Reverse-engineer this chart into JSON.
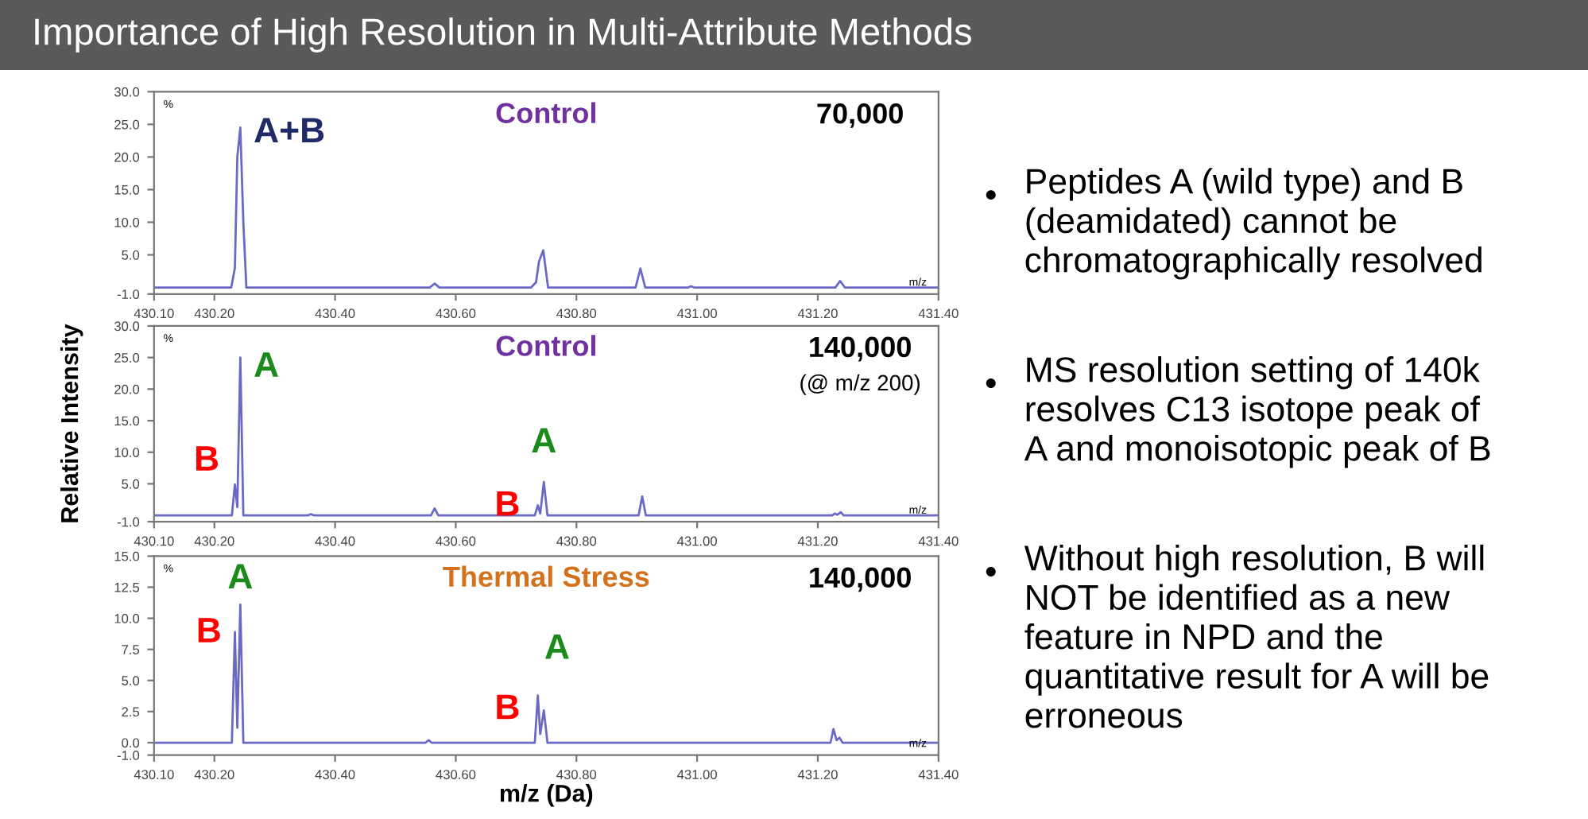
{
  "chart_data": [
    {
      "type": "line",
      "title": "Control",
      "annotations": [
        "%",
        "m/z",
        "70,000",
        {
          "text": "A+B",
          "x": 430.243,
          "y": 24.5
        }
      ],
      "x": [
        430.1,
        430.228,
        430.234,
        430.238,
        430.243,
        430.248,
        430.253,
        430.557,
        430.565,
        430.573,
        430.725,
        430.733,
        430.738,
        430.745,
        430.753,
        430.898,
        430.906,
        430.914,
        430.985,
        430.99,
        430.995,
        431.229,
        431.237,
        431.245,
        431.4
      ],
      "series": [
        {
          "color": "#6a6ac4",
          "values": [
            0,
            0,
            3.0,
            20.0,
            24.5,
            10.0,
            0,
            0,
            0.6,
            0,
            0,
            0.8,
            4.0,
            5.7,
            0,
            0,
            2.9,
            0,
            0,
            0.2,
            0,
            0,
            1.0,
            0,
            0
          ]
        }
      ],
      "xlim": [
        430.1,
        431.4
      ],
      "xticks": [
        {
          "value": 430.1,
          "label": "430.10"
        },
        {
          "value": 430.2,
          "label": "430.20"
        },
        {
          "value": 430.4,
          "label": "430.40"
        },
        {
          "value": 430.6,
          "label": "430.60"
        },
        {
          "value": 430.8,
          "label": "430.80"
        },
        {
          "value": 431.0,
          "label": "431.00"
        },
        {
          "value": 431.2,
          "label": "431.20"
        },
        {
          "value": 431.4,
          "label": "431.40"
        }
      ],
      "ylim": [
        -1,
        30
      ],
      "yticks": [
        {
          "value": -1,
          "label": "-1.0"
        },
        {
          "value": 5,
          "label": "5.0"
        },
        {
          "value": 10,
          "label": "10.0"
        },
        {
          "value": 15,
          "label": "15.0"
        },
        {
          "value": 20,
          "label": "20.0"
        },
        {
          "value": 25,
          "label": "25.0"
        },
        {
          "value": 30,
          "label": "30.0"
        }
      ]
    },
    {
      "type": "line",
      "title": "Control",
      "ylabel": "Relative Intensity",
      "annotations": [
        "%",
        "m/z",
        "140,000",
        "(@ m/z 200)",
        {
          "text": "B",
          "x": 430.234,
          "y": 4.9
        },
        {
          "text": "A",
          "x": 430.243,
          "y": 25.0
        },
        {
          "text": "B",
          "x": 430.736,
          "y": 1.6
        },
        {
          "text": "A",
          "x": 430.746,
          "y": 5.3
        }
      ],
      "x": [
        430.1,
        430.229,
        430.234,
        430.238,
        430.243,
        430.248,
        430.355,
        430.36,
        430.365,
        430.559,
        430.565,
        430.571,
        430.731,
        430.736,
        430.74,
        430.746,
        430.752,
        430.903,
        430.909,
        430.915,
        431.224,
        431.228,
        431.232,
        431.238,
        431.243,
        431.4
      ],
      "series": [
        {
          "color": "#6a6ac4",
          "values": [
            0,
            0,
            4.9,
            1.3,
            25.0,
            0,
            0,
            0.2,
            0,
            0,
            1.1,
            0,
            0,
            1.6,
            0.3,
            5.3,
            0,
            0,
            3.0,
            0,
            0,
            0.3,
            0.1,
            0.5,
            0,
            0
          ]
        }
      ],
      "xlim": [
        430.1,
        431.4
      ],
      "xticks": [
        {
          "value": 430.1,
          "label": "430.10"
        },
        {
          "value": 430.2,
          "label": "430.20"
        },
        {
          "value": 430.4,
          "label": "430.40"
        },
        {
          "value": 430.6,
          "label": "430.60"
        },
        {
          "value": 430.8,
          "label": "430.80"
        },
        {
          "value": 431.0,
          "label": "431.00"
        },
        {
          "value": 431.2,
          "label": "431.20"
        },
        {
          "value": 431.4,
          "label": "431.40"
        }
      ],
      "ylim": [
        -1,
        30
      ],
      "yticks": [
        {
          "value": -1,
          "label": "-1.0"
        },
        {
          "value": 5,
          "label": "5.0"
        },
        {
          "value": 10,
          "label": "10.0"
        },
        {
          "value": 15,
          "label": "15.0"
        },
        {
          "value": 20,
          "label": "20.0"
        },
        {
          "value": 25,
          "label": "25.0"
        },
        {
          "value": 30,
          "label": "30.0"
        }
      ]
    },
    {
      "type": "line",
      "title": "Thermal Stress",
      "xlabel": "m/z (Da)",
      "annotations": [
        "%",
        "m/z",
        "140,000",
        {
          "text": "B",
          "x": 430.234,
          "y": 8.9
        },
        {
          "text": "A",
          "x": 430.243,
          "y": 11.1
        },
        {
          "text": "B",
          "x": 430.736,
          "y": 3.8
        },
        {
          "text": "A",
          "x": 430.746,
          "y": 2.6
        }
      ],
      "x": [
        430.1,
        430.229,
        430.234,
        430.238,
        430.243,
        430.248,
        430.55,
        430.555,
        430.56,
        430.731,
        430.736,
        430.74,
        430.746,
        430.752,
        431.221,
        431.226,
        431.231,
        431.236,
        431.241,
        431.4
      ],
      "series": [
        {
          "color": "#6a6ac4",
          "values": [
            0,
            0,
            8.9,
            1.2,
            11.1,
            0,
            0,
            0.2,
            0,
            0,
            3.8,
            0.7,
            2.6,
            0,
            0,
            1.1,
            0.2,
            0.4,
            0,
            0
          ]
        }
      ],
      "xlim": [
        430.1,
        431.4
      ],
      "xticks": [
        {
          "value": 430.1,
          "label": "430.10"
        },
        {
          "value": 430.2,
          "label": "430.20"
        },
        {
          "value": 430.4,
          "label": "430.40"
        },
        {
          "value": 430.6,
          "label": "430.60"
        },
        {
          "value": 430.8,
          "label": "430.80"
        },
        {
          "value": 431.0,
          "label": "431.00"
        },
        {
          "value": 431.2,
          "label": "431.20"
        },
        {
          "value": 431.4,
          "label": "431.40"
        }
      ],
      "ylim": [
        -1,
        15
      ],
      "yticks": [
        {
          "value": -1,
          "label": "-1.0"
        },
        {
          "value": 0,
          "label": "0.0"
        },
        {
          "value": 2.5,
          "label": "2.5"
        },
        {
          "value": 5,
          "label": "5.0"
        },
        {
          "value": 7.5,
          "label": "7.5"
        },
        {
          "value": 10,
          "label": "10.0"
        },
        {
          "value": 12.5,
          "label": "12.5"
        },
        {
          "value": 15,
          "label": "15.0"
        }
      ]
    },
    {
      "type": "other",
      "title": "Importance of High Resolution in Multi-Attribute Methods",
      "annotations": [
        "Peptides A (wild type) and B\n(deamidated) cannot be\nchromatographically resolved",
        "MS resolution setting of 140k\nresolves C13 isotope peak of\nA and monoisotopic peak of B",
        "Without high resolution, B will\nNOT be identified as a new\nfeature in NPD and the\nquantitative result for A will be\nerroneous"
      ]
    }
  ]
}
